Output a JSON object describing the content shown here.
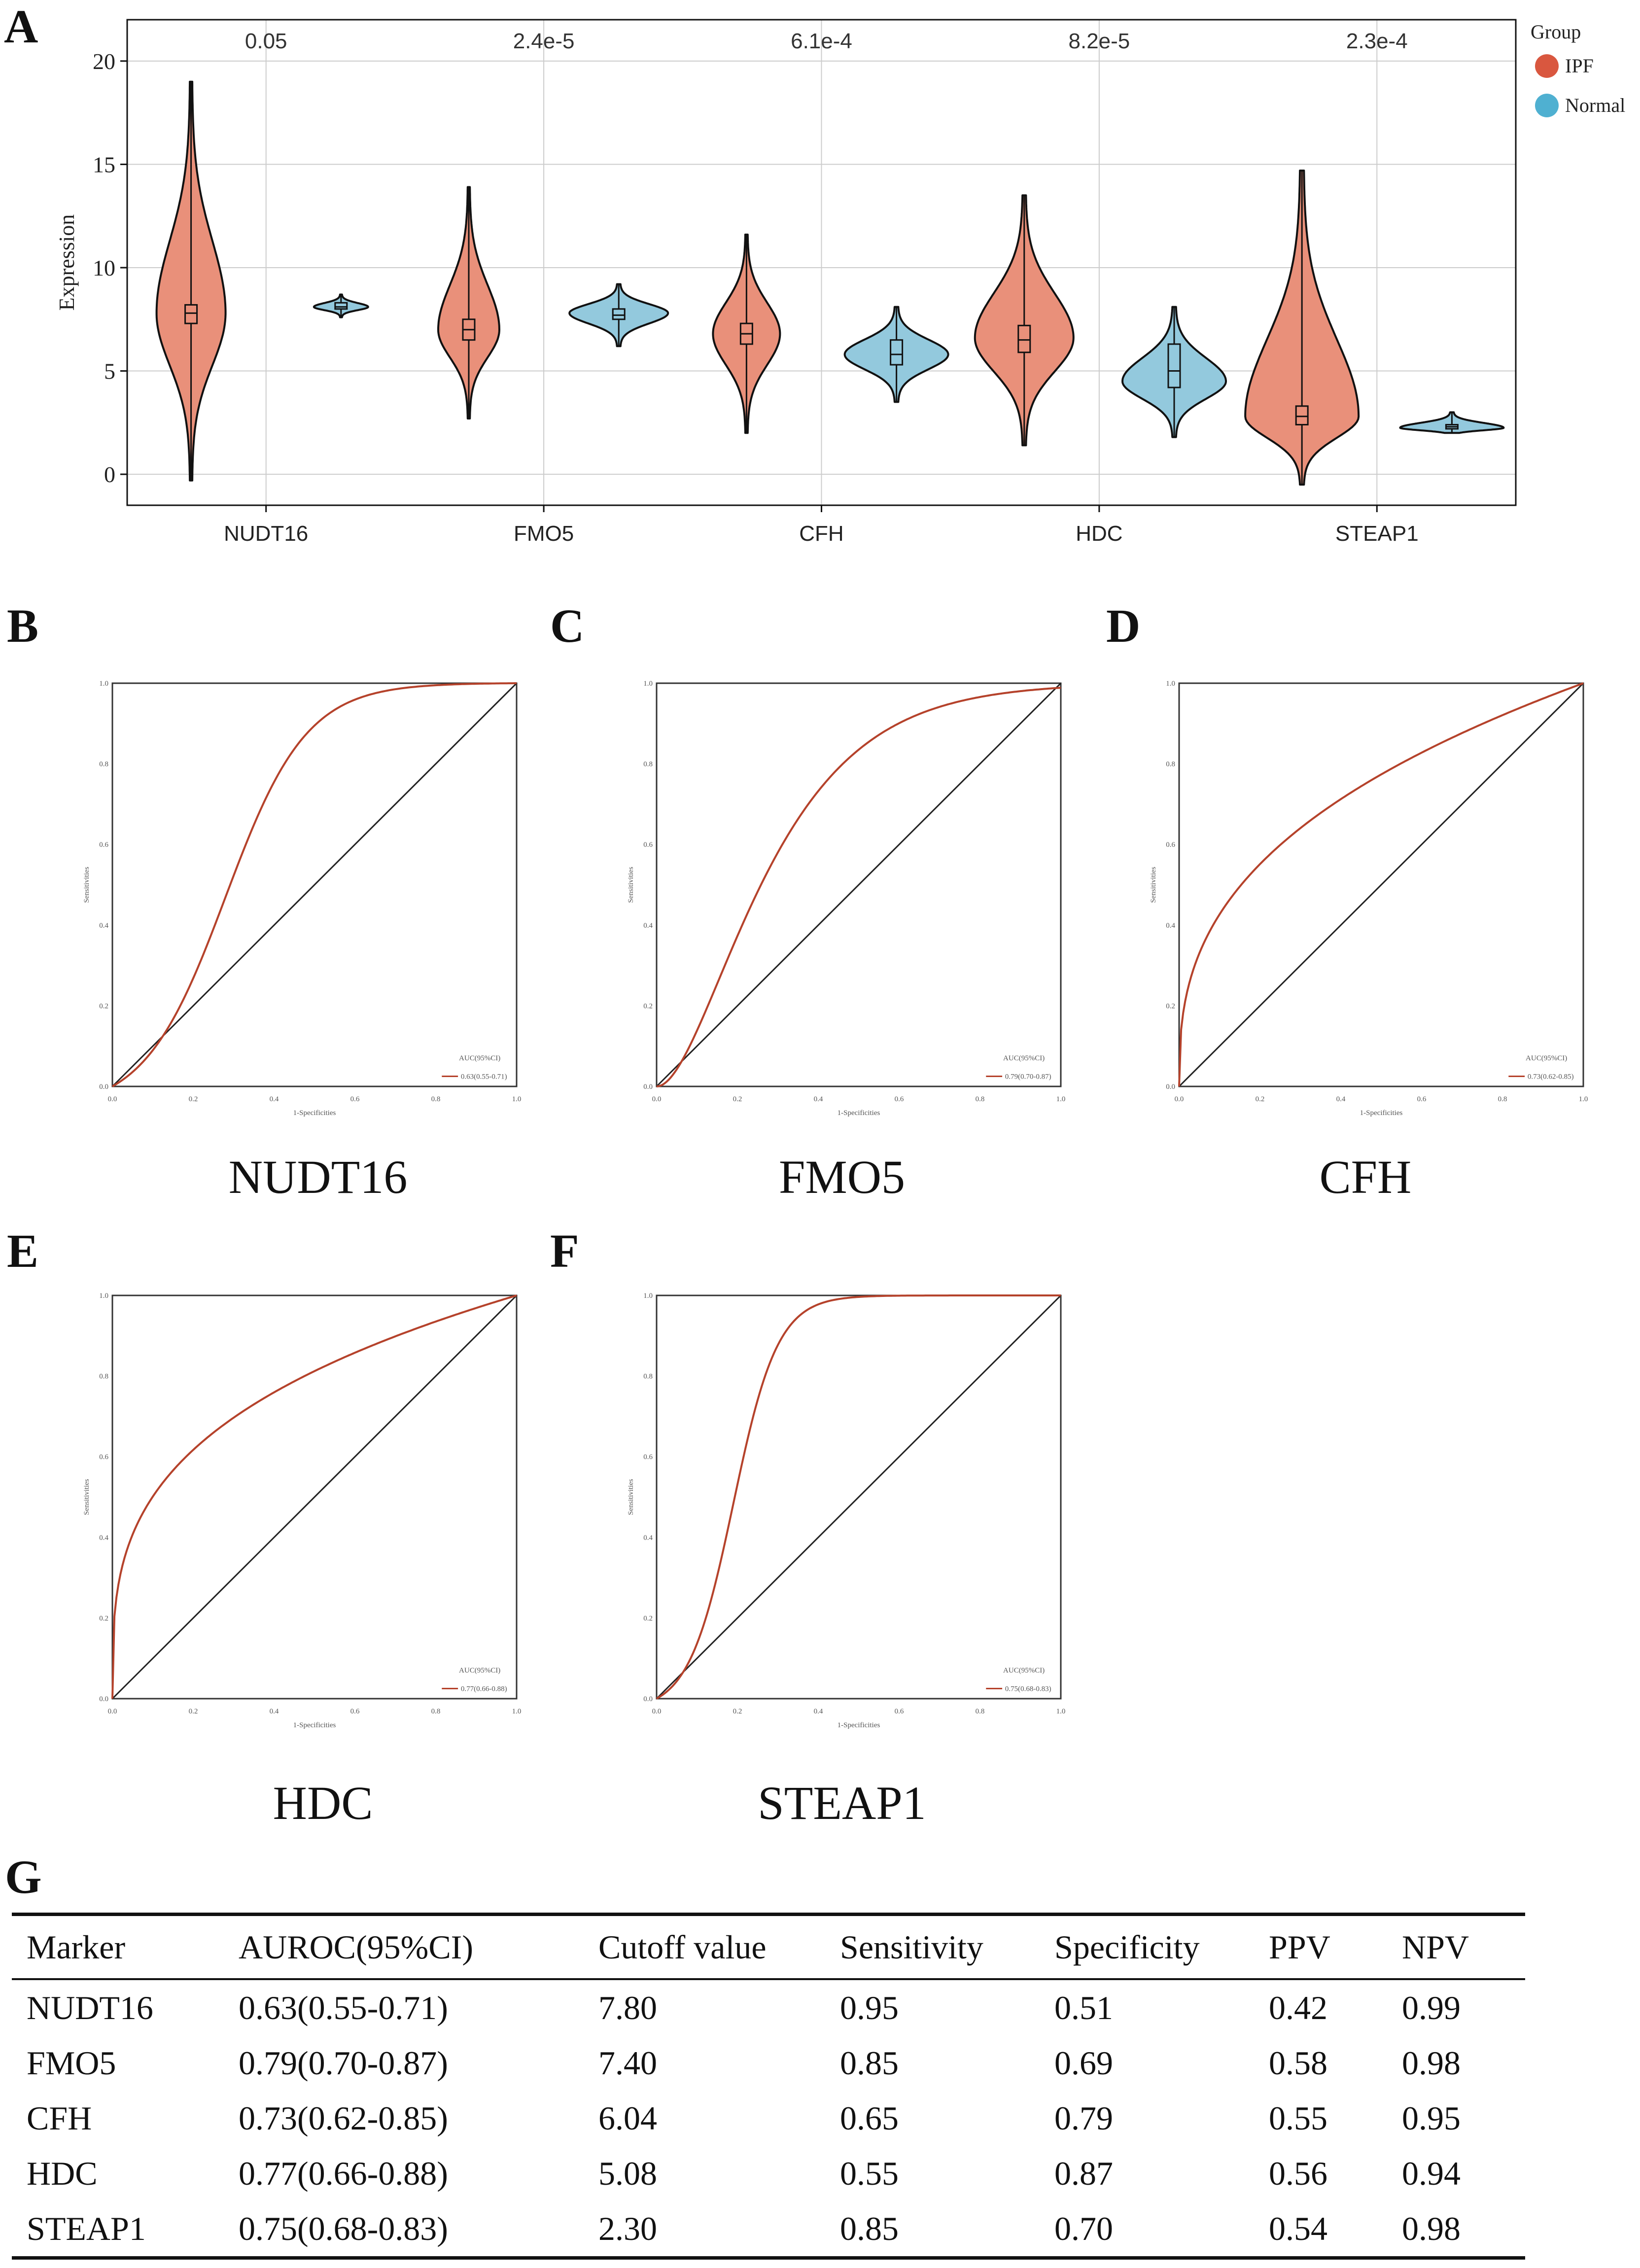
{
  "panels": {
    "A": "A",
    "B": "B",
    "C": "C",
    "D": "D",
    "E": "E",
    "F": "F",
    "G": "G"
  },
  "colors": {
    "ipf": "#E9907A",
    "ipf_legend": "#D9573F",
    "normal": "#93C9DD",
    "normal_legend": "#4FB0D1",
    "roc": "#B5422B",
    "grid": "#CCCCCC"
  },
  "chart_data": [
    {
      "type": "violin",
      "panel": "A",
      "ylabel": "Expression",
      "ylim": [
        -1.5,
        22
      ],
      "yticks": [
        0,
        5,
        10,
        15,
        20
      ],
      "categories": [
        "NUDT16",
        "FMO5",
        "CFH",
        "HDC",
        "STEAP1"
      ],
      "pvalues": [
        "0.05",
        "2.4e-5",
        "6.1e-4",
        "8.2e-5",
        "2.3e-4"
      ],
      "legend": {
        "title": "Group",
        "items": [
          "IPF",
          "Normal"
        ]
      },
      "series": [
        {
          "name": "IPF",
          "groups": [
            {
              "min": -0.3,
              "q1": 7.3,
              "median": 7.8,
              "q3": 8.2,
              "max": 19.0,
              "mode": 7.8
            },
            {
              "min": 2.7,
              "q1": 6.5,
              "median": 7.0,
              "q3": 7.5,
              "max": 13.9,
              "mode": 7.0
            },
            {
              "min": 2.0,
              "q1": 6.3,
              "median": 6.8,
              "q3": 7.3,
              "max": 11.6,
              "mode": 6.8
            },
            {
              "min": 1.4,
              "q1": 5.9,
              "median": 6.5,
              "q3": 7.2,
              "max": 13.5,
              "mode": 6.6
            },
            {
              "min": -0.5,
              "q1": 2.4,
              "median": 2.8,
              "q3": 3.3,
              "max": 14.7,
              "mode": 2.8
            }
          ]
        },
        {
          "name": "Normal",
          "groups": [
            {
              "min": 7.6,
              "q1": 8.0,
              "median": 8.1,
              "q3": 8.3,
              "max": 8.7,
              "mode": 8.1
            },
            {
              "min": 6.2,
              "q1": 7.5,
              "median": 7.7,
              "q3": 8.0,
              "max": 9.2,
              "mode": 7.8
            },
            {
              "min": 3.5,
              "q1": 5.3,
              "median": 5.8,
              "q3": 6.5,
              "max": 8.1,
              "mode": 5.8
            },
            {
              "min": 1.8,
              "q1": 4.2,
              "median": 5.0,
              "q3": 6.3,
              "max": 8.1,
              "mode": 4.5
            },
            {
              "min": 2.0,
              "q1": 2.2,
              "median": 2.3,
              "q3": 2.4,
              "max": 3.0,
              "mode": 2.25
            }
          ]
        }
      ]
    },
    {
      "type": "line",
      "panel": "B",
      "title": "NUDT16",
      "xlabel": "1-Specificities",
      "ylabel": "Sensitivities",
      "xlim": [
        0,
        1
      ],
      "ylim": [
        0,
        1
      ],
      "ticks": [
        "0.0",
        "0.2",
        "0.4",
        "0.6",
        "0.8",
        "1.0"
      ],
      "legend_header": "AUC(95%CI)",
      "legend_value": "0.63(0.55-0.71)",
      "curve_shape": "sigmoid",
      "curve_params": [
        0.28,
        0.1
      ]
    },
    {
      "type": "line",
      "panel": "C",
      "title": "FMO5",
      "xlabel": "1-Specificities",
      "ylabel": "Sensitivities",
      "xlim": [
        0,
        1
      ],
      "ylim": [
        0,
        1
      ],
      "ticks": [
        "0.0",
        "0.2",
        "0.4",
        "0.6",
        "0.8",
        "1.0"
      ],
      "legend_header": "AUC(95%CI)",
      "legend_value": "0.79(0.70-0.87)",
      "curve_shape": "gamma",
      "curve_params": [
        1.8,
        6.5
      ]
    },
    {
      "type": "line",
      "panel": "D",
      "title": "CFH",
      "xlabel": "1-Specificities",
      "ylabel": "Sensitivities",
      "xlim": [
        0,
        1
      ],
      "ylim": [
        0,
        1
      ],
      "ticks": [
        "0.0",
        "0.2",
        "0.4",
        "0.6",
        "0.8",
        "1.0"
      ],
      "legend_header": "AUC(95%CI)",
      "legend_value": "0.73(0.62-0.85)",
      "curve_shape": "power",
      "curve_params": [
        0.37
      ]
    },
    {
      "type": "line",
      "panel": "E",
      "title": "HDC",
      "xlabel": "1-Specificities",
      "ylabel": "Sensitivities",
      "xlim": [
        0,
        1
      ],
      "ylim": [
        0,
        1
      ],
      "ticks": [
        "0.0",
        "0.2",
        "0.4",
        "0.6",
        "0.8",
        "1.0"
      ],
      "legend_header": "AUC(95%CI)",
      "legend_value": "0.77(0.66-0.88)",
      "curve_shape": "power",
      "curve_params": [
        0.3
      ]
    },
    {
      "type": "line",
      "panel": "F",
      "title": "STEAP1",
      "xlabel": "1-Specificities",
      "ylabel": "Sensitivities",
      "xlim": [
        0,
        1
      ],
      "ylim": [
        0,
        1
      ],
      "ticks": [
        "0.0",
        "0.2",
        "0.4",
        "0.6",
        "0.8",
        "1.0"
      ],
      "legend_header": "AUC(95%CI)",
      "legend_value": "0.75(0.68-0.83)",
      "curve_shape": "sigmoid",
      "curve_params": [
        0.19,
        0.055
      ]
    },
    {
      "type": "table",
      "panel": "G",
      "columns": [
        "Marker",
        "AUROC(95%CI)",
        "Cutoff value",
        "Sensitivity",
        "Specificity",
        "PPV",
        "NPV"
      ],
      "rows": [
        [
          "NUDT16",
          "0.63(0.55-0.71)",
          "7.80",
          "0.95",
          "0.51",
          "0.42",
          "0.99"
        ],
        [
          "FMO5",
          "0.79(0.70-0.87)",
          "7.40",
          "0.85",
          "0.69",
          "0.58",
          "0.98"
        ],
        [
          "CFH",
          "0.73(0.62-0.85)",
          "6.04",
          "0.65",
          "0.79",
          "0.55",
          "0.95"
        ],
        [
          "HDC",
          "0.77(0.66-0.88)",
          "5.08",
          "0.55",
          "0.87",
          "0.56",
          "0.94"
        ],
        [
          "STEAP1",
          "0.75(0.68-0.83)",
          "2.30",
          "0.85",
          "0.70",
          "0.54",
          "0.98"
        ]
      ]
    }
  ]
}
